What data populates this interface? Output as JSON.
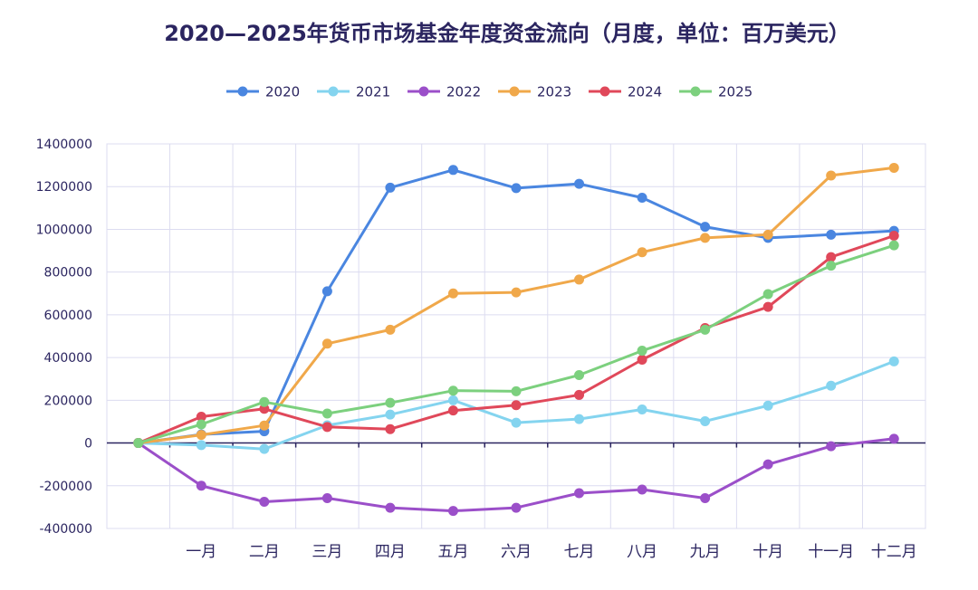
{
  "chart_data": {
    "type": "line",
    "title": "2020—2025年货币市场基金年度资金流向（月度，单位：百万美元）",
    "xlabel": "",
    "ylabel": "",
    "ylim": [
      -400000,
      1400000
    ],
    "yticks": [
      1400000,
      1200000,
      1000000,
      800000,
      600000,
      400000,
      200000,
      0,
      -200000,
      -400000
    ],
    "ytick_labels": [
      "1400000",
      "1200000",
      "1000000",
      "800000",
      "600000",
      "400000",
      "200000",
      "0",
      "-200000",
      "-400000"
    ],
    "categories": [
      "",
      "一月",
      "二月",
      "三月",
      "四月",
      "五月",
      "六月",
      "七月",
      "八月",
      "九月",
      "十月",
      "十一月",
      "十二月"
    ],
    "legend_position": "top-center",
    "grid": true,
    "series": [
      {
        "name": "2020",
        "color": "#4a86e0",
        "values": [
          0,
          40000,
          55000,
          710000,
          1195000,
          1278000,
          1193000,
          1213000,
          1148000,
          1012000,
          960000,
          975000,
          993000
        ]
      },
      {
        "name": "2021",
        "color": "#84d4ef",
        "values": [
          0,
          -10000,
          -28000,
          83000,
          133000,
          200000,
          95000,
          112000,
          157000,
          102000,
          175000,
          268000,
          382000
        ]
      },
      {
        "name": "2022",
        "color": "#9b4fc9",
        "values": [
          0,
          -200000,
          -275000,
          -258000,
          -303000,
          -318000,
          -303000,
          -235000,
          -218000,
          -258000,
          -100000,
          -15000,
          20000
        ]
      },
      {
        "name": "2023",
        "color": "#f0a84a",
        "values": [
          0,
          38000,
          82000,
          465000,
          530000,
          700000,
          705000,
          765000,
          893000,
          960000,
          975000,
          1252000,
          1288000
        ]
      },
      {
        "name": "2024",
        "color": "#e0485a",
        "values": [
          0,
          123000,
          160000,
          75000,
          65000,
          152000,
          177000,
          225000,
          390000,
          538000,
          637000,
          870000,
          970000
        ]
      },
      {
        "name": "2025",
        "color": "#7cd07e",
        "values": [
          0,
          87000,
          192000,
          138000,
          188000,
          245000,
          242000,
          318000,
          432000,
          530000,
          697000,
          830000,
          925000
        ]
      }
    ]
  }
}
